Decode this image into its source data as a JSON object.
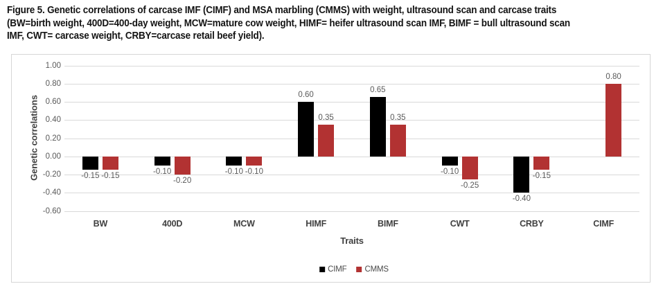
{
  "caption": {
    "lines": [
      "Figure 5. Genetic correlations of carcase IMF (CIMF) and MSA marbling (CMMS) with weight, ultrasound scan and carcase traits",
      "(BW=birth weight, 400D=400-day weight, MCW=mature cow weight, HIMF= heifer ultrasound scan IMF, BIMF = bull ultrasound scan",
      "IMF, CWT= carcase weight, CRBY=carcase retail beef yield)."
    ]
  },
  "chart_data": {
    "type": "bar",
    "title": "",
    "categories": [
      "BW",
      "400D",
      "MCW",
      "HIMF",
      "BIMF",
      "CWT",
      "CRBY",
      "CIMF"
    ],
    "series": [
      {
        "name": "CIMF",
        "color": "#000000",
        "values": [
          -0.15,
          -0.1,
          -0.1,
          0.6,
          0.65,
          -0.1,
          -0.4,
          null
        ]
      },
      {
        "name": "CMMS",
        "color": "#b23232",
        "values": [
          -0.15,
          -0.2,
          -0.1,
          0.35,
          0.35,
          -0.25,
          -0.15,
          0.8
        ]
      }
    ],
    "xlabel": "Traits",
    "ylabel": "Genetic correlations",
    "ylim": [
      -0.6,
      1.0
    ],
    "ytick_step": 0.2,
    "ytick_labels": [
      "1.00",
      "0.80",
      "0.60",
      "0.40",
      "0.20",
      "0.00",
      "-0.20",
      "-0.40",
      "-0.60"
    ],
    "grid": true,
    "legend_position": "bottom",
    "value_labels": "outside-end, 2 decimals"
  },
  "colors": {
    "gridline": "#d9d9d9",
    "panel_border": "#d6d6d6",
    "tick_text": "#595959",
    "value_label_text": "#595959",
    "axis_title_text": "#404040"
  }
}
